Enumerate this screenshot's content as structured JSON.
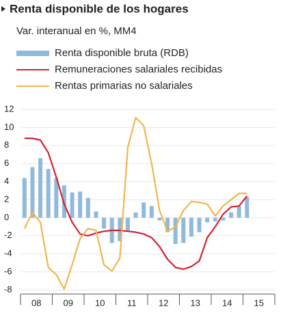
{
  "chart_data": {
    "type": "bar_line",
    "title": "Renta disponible de los hogares",
    "subtitle": "Var. interanual en %, MM4",
    "categories": [
      "08",
      null,
      null,
      null,
      "09",
      null,
      null,
      null,
      "10",
      null,
      null,
      null,
      "11",
      null,
      null,
      null,
      "12",
      null,
      null,
      null,
      "13",
      null,
      null,
      null,
      "14",
      null,
      null,
      null,
      "15"
    ],
    "series": [
      {
        "name": "Renta disponible bruta (RDB)",
        "type": "bar",
        "color": "#8fbadb",
        "values": [
          4.4,
          5.6,
          6.6,
          5.4,
          4.4,
          3.6,
          2.8,
          2.9,
          2.2,
          0.7,
          -1.2,
          -2.8,
          -2.6,
          -1.5,
          0.6,
          1.7,
          1.3,
          -0.3,
          -1.6,
          -2.9,
          -2.8,
          -2.1,
          -1.6,
          -0.5,
          -0.4,
          -0.3,
          0.6,
          1.3,
          2.3
        ]
      },
      {
        "name": "Remuneraciones salariales recibidas",
        "type": "line",
        "color": "#d42130",
        "values": [
          8.8,
          8.8,
          8.6,
          7.2,
          4.5,
          1.5,
          -0.5,
          -1.8,
          -2.0,
          -1.7,
          -1.5,
          -1.4,
          -1.4,
          -1.5,
          -1.6,
          -1.8,
          -2.2,
          -3.2,
          -4.6,
          -5.5,
          -5.7,
          -5.4,
          -4.8,
          -2.2,
          -1.0,
          0.4,
          1.2,
          1.3,
          2.4
        ]
      },
      {
        "name": "Rentas primarias no salariales",
        "type": "line",
        "color": "#f2b44f",
        "values": [
          -1.2,
          0.6,
          -0.5,
          -5.5,
          -6.3,
          -7.9,
          -5.2,
          -2.3,
          -1.2,
          -1.4,
          -5.2,
          -5.9,
          -4.5,
          7.8,
          11.1,
          10.2,
          6.0,
          0.8,
          -1.5,
          -1.0,
          0.8,
          1.8,
          1.7,
          1.5,
          0.2,
          1.3,
          2.0,
          2.7,
          2.7
        ]
      }
    ],
    "ylim": [
      -8,
      12
    ],
    "yticks": [
      -8,
      -6,
      -4,
      -2,
      0,
      2,
      4,
      6,
      8,
      10,
      12
    ],
    "grid": true
  }
}
